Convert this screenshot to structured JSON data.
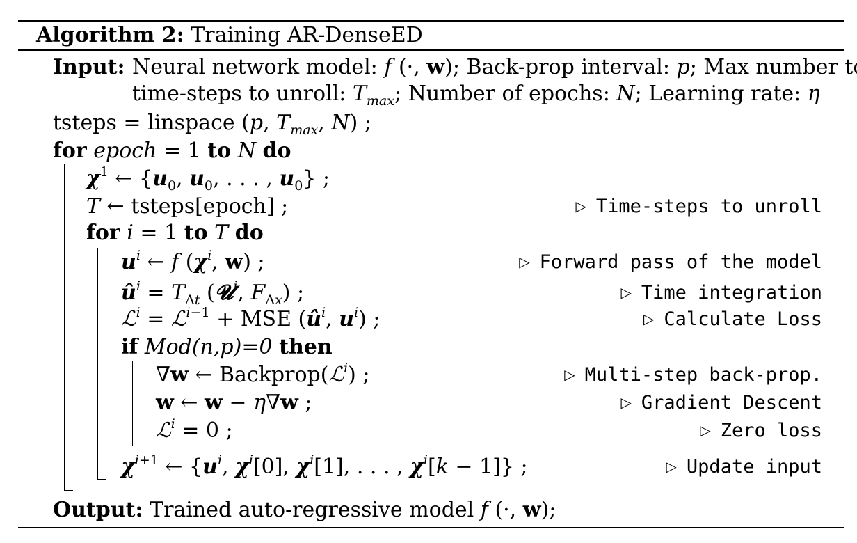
{
  "algorithm": {
    "label": "Algorithm 2:",
    "title": "Training AR-DenseED"
  },
  "input": {
    "label": "Input:",
    "line1": "Neural network model: f(·, w); Back-prop interval: p; Max number to",
    "line2": "time-steps to unroll: T_max; Number of epochs: N; Learning rate: η"
  },
  "steps": [
    {
      "text": "tsteps = linspace(p, T_max, N) ;",
      "comment": ""
    },
    {
      "text": "for epoch = 1 to N do",
      "comment": ""
    },
    {
      "text": "χ¹ ← {u₀, u₀, …, u₀} ;",
      "comment": ""
    },
    {
      "text": "T ← tsteps[epoch] ;",
      "comment": "Time-steps to unroll"
    },
    {
      "text": "for i = 1 to T do",
      "comment": ""
    },
    {
      "text": "uⁱ ← f(χⁱ, w) ;",
      "comment": "Forward pass of the model"
    },
    {
      "text": "ûⁱ = T_Δt(𝓤ⁱ, F_Δx) ;",
      "comment": "Time integration"
    },
    {
      "text": "ℒⁱ = ℒⁱ⁻¹ + MSE(ûⁱ, uⁱ) ;",
      "comment": "Calculate Loss"
    },
    {
      "text": "if Mod(n,p)=0 then",
      "comment": ""
    },
    {
      "text": "∇w ← Backprop(ℒⁱ) ;",
      "comment": "Multi-step back-prop."
    },
    {
      "text": "w ← w − η∇w ;",
      "comment": "Gradient Descent"
    },
    {
      "text": "ℒⁱ = 0 ;",
      "comment": "Zero loss"
    },
    {
      "text": "χⁱ⁺¹ ← {uⁱ, χⁱ[0], χⁱ[1], …, χⁱ[k − 1]} ;",
      "comment": "Update input"
    }
  ],
  "output": {
    "label": "Output:",
    "text": "Trained auto-regressive model f(·, w);"
  }
}
